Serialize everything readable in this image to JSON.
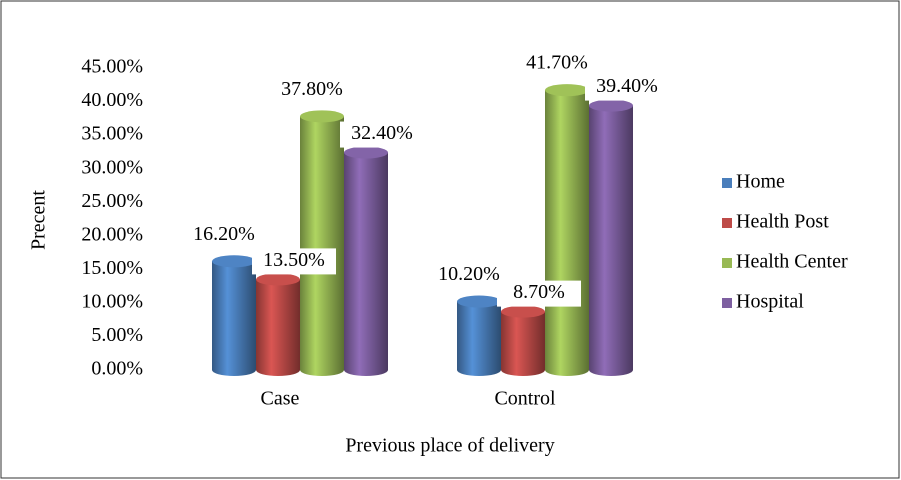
{
  "chart_data": {
    "type": "bar",
    "x_label": "Previous place of delivery",
    "y_label": "Precent",
    "categories": [
      "Case",
      "Control"
    ],
    "series": [
      {
        "name": "Home",
        "color": "#4a7ebb",
        "values": [
          16.2,
          10.2
        ],
        "value_labels": [
          "16.20%",
          "10.20%"
        ]
      },
      {
        "name": "Health Post",
        "color": "#be4b48",
        "values": [
          13.5,
          8.7
        ],
        "value_labels": [
          "13.50%",
          "8.70%"
        ]
      },
      {
        "name": "Health Center",
        "color": "#98b954",
        "values": [
          37.8,
          41.7
        ],
        "value_labels": [
          "37.80%",
          "41.70%"
        ]
      },
      {
        "name": "Hospital",
        "color": "#7d5fa0",
        "values": [
          32.4,
          39.4
        ],
        "value_labels": [
          "32.40%",
          "39.40%"
        ]
      }
    ],
    "ylim": [
      0,
      45
    ],
    "yticks": [
      {
        "value": 0,
        "label": "0.00%"
      },
      {
        "value": 5,
        "label": "5.00%"
      },
      {
        "value": 10,
        "label": "10.00%"
      },
      {
        "value": 15,
        "label": "15.00%"
      },
      {
        "value": 20,
        "label": "20.00%"
      },
      {
        "value": 25,
        "label": "25.00%"
      },
      {
        "value": 30,
        "label": "30.00%"
      },
      {
        "value": 35,
        "label": "35.00%"
      },
      {
        "value": 40,
        "label": "40.00%"
      },
      {
        "value": 45,
        "label": "45.00%"
      }
    ],
    "legend": "right"
  }
}
